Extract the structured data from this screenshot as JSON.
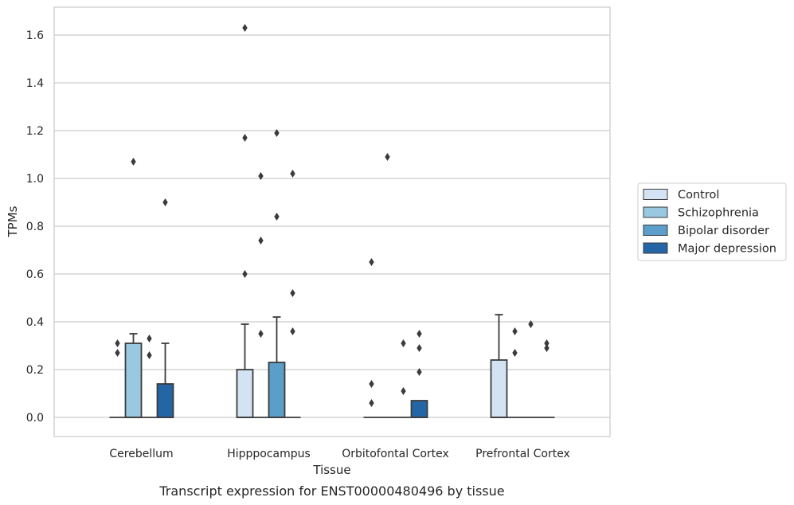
{
  "chart_data": {
    "type": "box",
    "xlabel": "Tissue",
    "ylabel": "TPMs",
    "caption": "Transcript expression for ENST00000480496 by tissue",
    "categories": [
      "Cerebellum",
      "Hipppocampus",
      "Orbitofontal Cortex",
      "Prefrontal Cortex"
    ],
    "ylim": [
      -0.08,
      1.71
    ],
    "yticks": [
      0.0,
      0.2,
      0.4,
      0.6,
      0.8,
      1.0,
      1.2,
      1.4,
      1.6
    ],
    "ytick_labels": [
      "0.0",
      "0.2",
      "0.4",
      "0.6",
      "0.8",
      "1.0",
      "1.2",
      "1.4",
      "1.6"
    ],
    "grid": "horizontal",
    "legend_position": "right",
    "series": [
      {
        "name": "Control",
        "color": "#d3e3f3",
        "boxes": [
          {
            "q1": 0,
            "median": 0,
            "q3": 0,
            "whisker_low": 0,
            "whisker_high": 0,
            "outliers": [
              0.27,
              0.31
            ]
          },
          {
            "q1": 0,
            "median": 0,
            "q3": 0.2,
            "whisker_low": 0,
            "whisker_high": 0.39,
            "outliers": [
              0.6,
              1.17,
              1.63
            ]
          },
          {
            "q1": 0,
            "median": 0,
            "q3": 0,
            "whisker_low": 0,
            "whisker_high": 0,
            "outliers": [
              0.06,
              0.14,
              0.65
            ]
          },
          {
            "q1": 0,
            "median": 0,
            "q3": 0.24,
            "whisker_low": 0,
            "whisker_high": 0.43,
            "outliers": []
          }
        ]
      },
      {
        "name": "Schizophrenia",
        "color": "#9ac8e0",
        "boxes": [
          {
            "q1": 0,
            "median": 0,
            "q3": 0.31,
            "whisker_low": 0,
            "whisker_high": 0.35,
            "outliers": [
              1.07
            ]
          },
          {
            "q1": 0,
            "median": 0,
            "q3": 0,
            "whisker_low": 0,
            "whisker_high": 0,
            "outliers": [
              0.35,
              0.74,
              1.01
            ]
          },
          {
            "q1": 0,
            "median": 0,
            "q3": 0,
            "whisker_low": 0,
            "whisker_high": 0,
            "outliers": [
              1.09
            ]
          },
          {
            "q1": 0,
            "median": 0,
            "q3": 0,
            "whisker_low": 0,
            "whisker_high": 0,
            "outliers": [
              0.27,
              0.36
            ]
          }
        ]
      },
      {
        "name": "Bipolar disorder",
        "color": "#5a9ec9",
        "boxes": [
          {
            "q1": 0,
            "median": 0,
            "q3": 0,
            "whisker_low": 0,
            "whisker_high": 0,
            "outliers": [
              0.26,
              0.33
            ]
          },
          {
            "q1": 0,
            "median": 0,
            "q3": 0.23,
            "whisker_low": 0,
            "whisker_high": 0.42,
            "outliers": [
              0.84,
              1.19
            ]
          },
          {
            "q1": 0,
            "median": 0,
            "q3": 0,
            "whisker_low": 0,
            "whisker_high": 0,
            "outliers": [
              0.11,
              0.31
            ]
          },
          {
            "q1": 0,
            "median": 0,
            "q3": 0,
            "whisker_low": 0,
            "whisker_high": 0,
            "outliers": [
              0.39
            ]
          }
        ]
      },
      {
        "name": "Major depression",
        "color": "#2465a6",
        "boxes": [
          {
            "q1": 0,
            "median": 0,
            "q3": 0.14,
            "whisker_low": 0,
            "whisker_high": 0.31,
            "outliers": [
              0.9
            ]
          },
          {
            "q1": 0,
            "median": 0,
            "q3": 0,
            "whisker_low": 0,
            "whisker_high": 0,
            "outliers": [
              0.36,
              0.52,
              1.02
            ]
          },
          {
            "q1": 0,
            "median": 0,
            "q3": 0.07,
            "whisker_low": 0,
            "whisker_high": 0.07,
            "outliers": [
              0.19,
              0.29,
              0.35
            ]
          },
          {
            "q1": 0,
            "median": 0,
            "q3": 0,
            "whisker_low": 0,
            "whisker_high": 0,
            "outliers": [
              0.29,
              0.31
            ]
          }
        ]
      }
    ]
  }
}
